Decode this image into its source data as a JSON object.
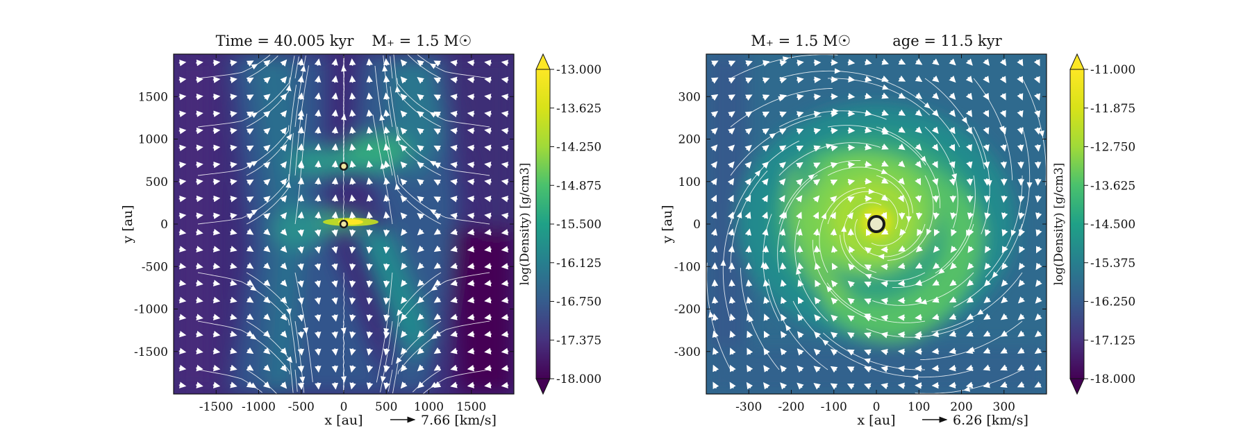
{
  "colors": {
    "low": "#440154",
    "mid_low": "#3b528b",
    "mid": "#21918c",
    "mid_high": "#5ec962",
    "high": "#fde725",
    "streamline": "#ffffff",
    "sink_edge": "#1a1a1a"
  },
  "chart_data": [
    {
      "type": "heatmap",
      "title_left": "Time = 40.005 kyr",
      "title_right": "M₊ = 1.5 M☉",
      "title": "Time = 40.005 kyr    M₊ = 1.5 M☉",
      "xlabel": "x [au]",
      "ylabel": "y [au]",
      "xlim": [
        -2000,
        2000
      ],
      "ylim": [
        -2000,
        2000
      ],
      "xticks": [
        -1500,
        -1000,
        -500,
        0,
        500,
        1000,
        1500
      ],
      "yticks": [
        -1500,
        -1000,
        -500,
        0,
        500,
        1000,
        1500
      ],
      "xtick_labels": [
        "-1500",
        "-1000",
        "-500",
        "0",
        "500",
        "1000",
        "1500"
      ],
      "ytick_labels": [
        "-1500",
        "-1000",
        "-500",
        "0",
        "500",
        "1000",
        "1500"
      ],
      "sinks": [
        {
          "x": 0,
          "y": 680
        },
        {
          "x": 0,
          "y": 0
        }
      ],
      "velocity_key_label": "7.66 [km/s]",
      "colorbar": {
        "label": "log(Density) [g/cm3]",
        "min": -18.0,
        "max": -13.0,
        "tick_labels": [
          "-13.000",
          "-13.625",
          "-14.250",
          "-14.875",
          "-15.500",
          "-16.125",
          "-16.750",
          "-17.375",
          "-18.000"
        ]
      },
      "field_type": "filament"
    },
    {
      "type": "heatmap",
      "title_left": "M₊ = 1.5 M☉",
      "title_right": "age = 11.5 kyr",
      "title": "M₊ = 1.5 M☉        age = 11.5 kyr",
      "xlabel": "x [au]",
      "ylabel": "y [au]",
      "xlim": [
        -400,
        400
      ],
      "ylim": [
        -400,
        400
      ],
      "xticks": [
        -300,
        -200,
        -100,
        0,
        100,
        200,
        300
      ],
      "yticks": [
        -300,
        -200,
        -100,
        0,
        100,
        200,
        300
      ],
      "xtick_labels": [
        "-300",
        "-200",
        "-100",
        "0",
        "100",
        "200",
        "300"
      ],
      "ytick_labels": [
        "-300",
        "-200",
        "-100",
        "0",
        "100",
        "200",
        "300"
      ],
      "sinks": [
        {
          "x": 0,
          "y": 0
        }
      ],
      "velocity_key_label": "6.26 [km/s]",
      "colorbar": {
        "label": "log(Density) [g/cm3]",
        "min": -18.0,
        "max": -11.0,
        "tick_labels": [
          "-11.000",
          "-11.875",
          "-12.750",
          "-13.625",
          "-14.500",
          "-15.375",
          "-16.250",
          "-17.125",
          "-18.000"
        ]
      },
      "field_type": "disk"
    }
  ]
}
